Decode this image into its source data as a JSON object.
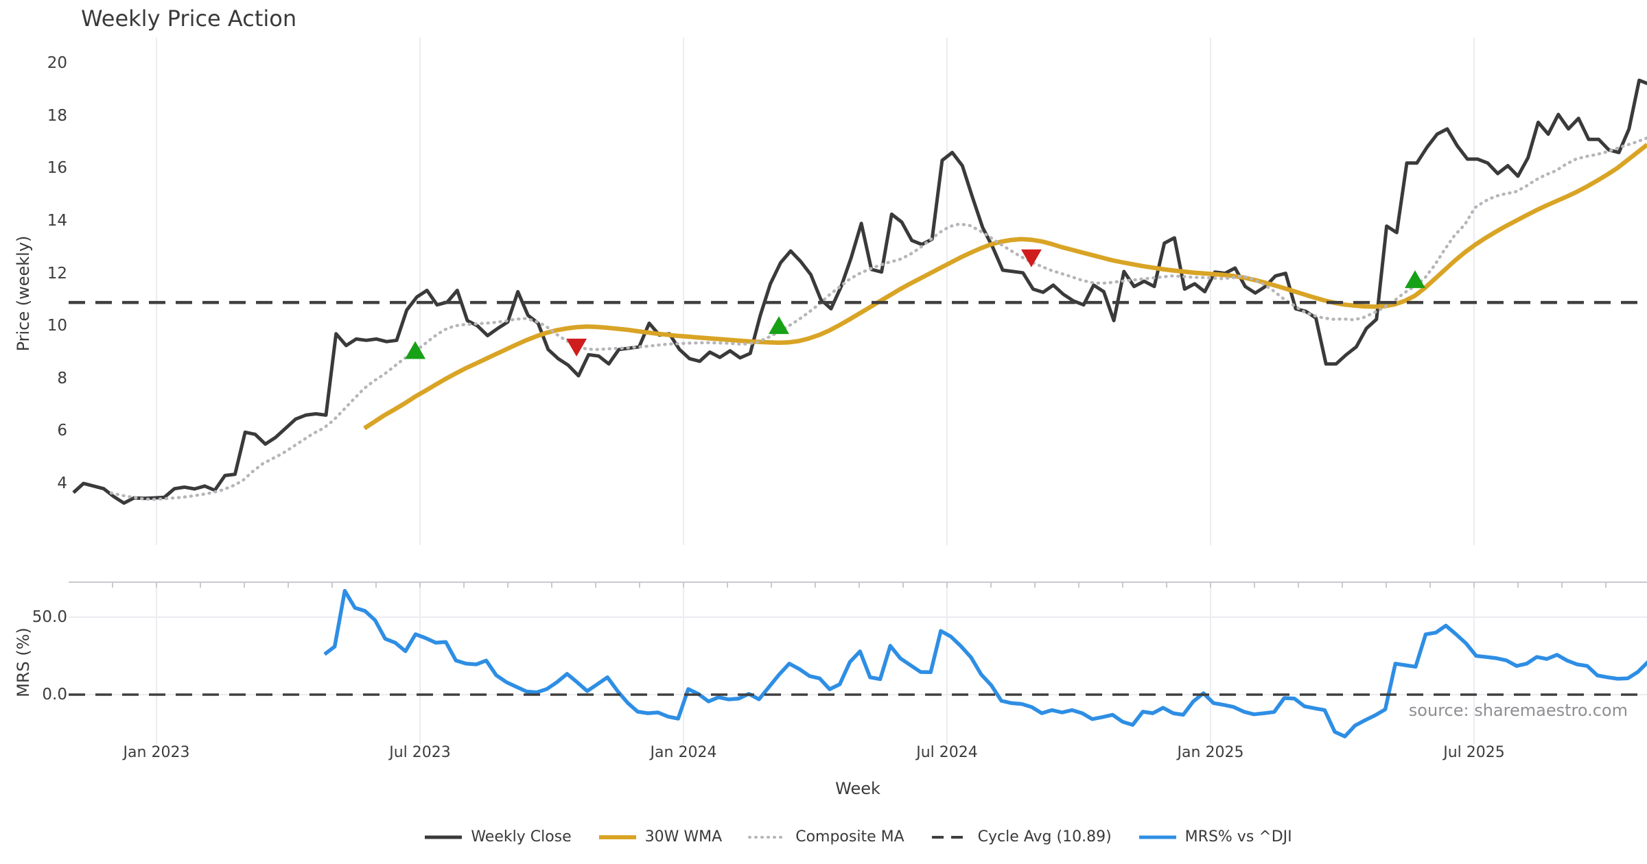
{
  "title": "Weekly Price Action",
  "source_note": "source: sharemaestro.com",
  "colors": {
    "close": "#3a3a3a",
    "wma": "#d9a425",
    "composite": "#b6b6ba",
    "cycle": "#3f3f3f",
    "mrs": "#2e8ee4",
    "buy": "#17a117",
    "sell": "#cf1d1d",
    "grid": "#ececf1",
    "spine": "#c9c9cf",
    "tick_text": "#3c3c3c",
    "source_text": "#8e8e93"
  },
  "price_axis": {
    "label": "Price (weekly)",
    "ticks": [
      {
        "label": "4",
        "value": 4
      },
      {
        "label": "6",
        "value": 6
      },
      {
        "label": "8",
        "value": 8
      },
      {
        "label": "10",
        "value": 10
      },
      {
        "label": "12",
        "value": 12
      },
      {
        "label": "14",
        "value": 14
      },
      {
        "label": "16",
        "value": 16
      },
      {
        "label": "18",
        "value": 18
      },
      {
        "label": "20",
        "value": 20
      }
    ],
    "range": [
      1.65,
      20.97
    ]
  },
  "mrs_axis": {
    "label": "MRS (%)",
    "ticks": [
      {
        "label": "0.0",
        "value": 0
      },
      {
        "label": "50.0",
        "value": 50
      }
    ],
    "range": [
      -31.9,
      72.6
    ]
  },
  "x_axis": {
    "label": "Week",
    "ticks": [
      {
        "label": "Jan 2023",
        "year": 2023.0
      },
      {
        "label": "Jul 2023",
        "year": 2023.5
      },
      {
        "label": "Jan 2024",
        "year": 2024.0
      },
      {
        "label": "Jul 2024",
        "year": 2024.5
      },
      {
        "label": "Jan 2025",
        "year": 2025.0
      },
      {
        "label": "Jul 2025",
        "year": 2025.5
      }
    ],
    "range": [
      2022.833,
      2025.828
    ]
  },
  "legend": [
    {
      "label": "Weekly Close",
      "swatch": "solid",
      "color_key": "close",
      "weight": 5
    },
    {
      "label": "30W WMA",
      "swatch": "solid",
      "color_key": "wma",
      "weight": 6
    },
    {
      "label": "Composite MA",
      "swatch": "dotted",
      "color_key": "composite",
      "weight": 4
    },
    {
      "label": "Cycle Avg (10.89)",
      "swatch": "dashed",
      "color_key": "cycle",
      "weight": 4
    },
    {
      "label": "MRS% vs ^DJI",
      "swatch": "solid",
      "color_key": "mrs",
      "weight": 5
    }
  ],
  "chart_data": [
    {
      "type": "line",
      "panel": "price",
      "name": "Weekly Close",
      "color_key": "close",
      "dash": "solid",
      "width": 5,
      "start_year": 2022.8424,
      "step_years": 0.0191667,
      "values": [
        3.65,
        4.0,
        3.9,
        3.8,
        3.5,
        3.25,
        3.45,
        3.43,
        3.45,
        3.47,
        3.8,
        3.86,
        3.79,
        3.9,
        3.74,
        4.3,
        4.35,
        5.95,
        5.87,
        5.5,
        5.75,
        6.1,
        6.45,
        6.6,
        6.65,
        6.6,
        9.7,
        9.25,
        9.5,
        9.45,
        9.5,
        9.4,
        9.45,
        10.6,
        11.1,
        11.35,
        10.8,
        10.9,
        11.35,
        10.2,
        10.0,
        9.63,
        9.9,
        10.15,
        11.3,
        10.4,
        10.1,
        9.1,
        8.75,
        8.5,
        8.1,
        8.9,
        8.85,
        8.55,
        9.1,
        9.15,
        9.2,
        10.1,
        9.65,
        9.7,
        9.1,
        8.75,
        8.65,
        9.0,
        8.8,
        9.05,
        8.78,
        8.95,
        10.4,
        11.6,
        12.4,
        12.85,
        12.45,
        11.95,
        11.0,
        10.65,
        11.5,
        12.6,
        13.9,
        12.15,
        12.05,
        14.25,
        13.95,
        13.25,
        13.1,
        13.3,
        16.3,
        16.6,
        16.1,
        14.9,
        13.75,
        13.0,
        12.12,
        12.07,
        12.02,
        11.4,
        11.28,
        11.55,
        11.2,
        10.95,
        10.8,
        11.55,
        11.3,
        10.2,
        12.07,
        11.5,
        11.7,
        11.5,
        13.15,
        13.35,
        11.4,
        11.6,
        11.3,
        12.05,
        12.0,
        12.2,
        11.5,
        11.25,
        11.5,
        11.9,
        12.0,
        10.65,
        10.55,
        10.3,
        8.55,
        8.55,
        8.9,
        9.2,
        9.9,
        10.25,
        13.8,
        13.55,
        16.2,
        16.2,
        16.8,
        17.3,
        17.5,
        16.85,
        16.35,
        16.35,
        16.2,
        15.8,
        16.1,
        15.7,
        16.4,
        17.75,
        17.3,
        18.05,
        17.5,
        17.9,
        17.1,
        17.1,
        16.7,
        16.6,
        17.5,
        19.35,
        19.2
      ]
    },
    {
      "type": "line",
      "panel": "price",
      "name": "30W WMA",
      "color_key": "wma",
      "dash": "solid",
      "width": 6.5,
      "start_year": 2023.3945,
      "step_years": 0.0191667,
      "values": [
        6.1,
        6.35,
        6.6,
        6.82,
        7.05,
        7.3,
        7.52,
        7.75,
        7.97,
        8.18,
        8.38,
        8.56,
        8.74,
        8.92,
        9.1,
        9.28,
        9.45,
        9.6,
        9.73,
        9.83,
        9.9,
        9.95,
        9.97,
        9.96,
        9.93,
        9.89,
        9.85,
        9.8,
        9.75,
        9.7,
        9.66,
        9.62,
        9.59,
        9.56,
        9.53,
        9.5,
        9.47,
        9.44,
        9.41,
        9.39,
        9.37,
        9.36,
        9.37,
        9.42,
        9.52,
        9.65,
        9.82,
        10.02,
        10.24,
        10.47,
        10.7,
        10.93,
        11.16,
        11.39,
        11.6,
        11.8,
        12.0,
        12.2,
        12.4,
        12.6,
        12.78,
        12.95,
        13.1,
        13.2,
        13.27,
        13.3,
        13.28,
        13.22,
        13.12,
        13.0,
        12.9,
        12.8,
        12.7,
        12.6,
        12.5,
        12.42,
        12.35,
        12.28,
        12.22,
        12.16,
        12.11,
        12.07,
        12.03,
        12.0,
        11.97,
        11.94,
        11.9,
        11.84,
        11.76,
        11.66,
        11.55,
        11.44,
        11.32,
        11.2,
        11.08,
        10.97,
        10.88,
        10.81,
        10.77,
        10.74,
        10.73,
        10.75,
        10.82,
        10.95,
        11.15,
        11.45,
        11.8,
        12.15,
        12.5,
        12.82,
        13.1,
        13.35,
        13.58,
        13.8,
        14.0,
        14.2,
        14.4,
        14.58,
        14.75,
        14.92,
        15.1,
        15.3,
        15.52,
        15.75,
        16.0,
        16.3,
        16.6,
        16.9
      ]
    },
    {
      "type": "line",
      "panel": "price",
      "name": "Composite MA",
      "color_key": "composite",
      "dash": "dotted",
      "width": 4.5,
      "start_year": 2022.914,
      "step_years": 0.0191667,
      "values": [
        3.64,
        3.55,
        3.48,
        3.42,
        3.39,
        3.41,
        3.44,
        3.47,
        3.52,
        3.58,
        3.65,
        3.75,
        3.9,
        4.1,
        4.45,
        4.75,
        4.95,
        5.15,
        5.4,
        5.65,
        5.9,
        6.1,
        6.4,
        6.8,
        7.2,
        7.6,
        7.9,
        8.15,
        8.45,
        8.75,
        9.0,
        9.3,
        9.6,
        9.85,
        10.0,
        10.05,
        10.07,
        10.1,
        10.13,
        10.18,
        10.25,
        10.28,
        10.18,
        10.0,
        9.7,
        9.45,
        9.27,
        9.12,
        9.1,
        9.12,
        9.14,
        9.16,
        9.19,
        9.22,
        9.26,
        9.3,
        9.32,
        9.34,
        9.35,
        9.36,
        9.35,
        9.34,
        9.31,
        9.31,
        9.38,
        9.55,
        9.75,
        9.98,
        10.22,
        10.5,
        10.8,
        11.15,
        11.45,
        11.75,
        11.98,
        12.15,
        12.3,
        12.42,
        12.52,
        12.7,
        12.95,
        13.25,
        13.55,
        13.78,
        13.88,
        13.82,
        13.62,
        13.38,
        13.12,
        12.88,
        12.65,
        12.45,
        12.28,
        12.12,
        12.0,
        11.88,
        11.75,
        11.65,
        11.62,
        11.65,
        11.7,
        11.74,
        11.78,
        11.82,
        11.86,
        11.9,
        11.88,
        11.85,
        11.84,
        11.82,
        11.8,
        11.83,
        11.9,
        11.78,
        11.6,
        11.35,
        11.05,
        10.8,
        10.55,
        10.4,
        10.3,
        10.25,
        10.26,
        10.23,
        10.32,
        10.5,
        10.7,
        10.95,
        11.25,
        11.5,
        11.8,
        12.3,
        12.9,
        13.45,
        13.85,
        14.5,
        14.75,
        14.93,
        15.03,
        15.1,
        15.3,
        15.55,
        15.75,
        15.9,
        16.15,
        16.35,
        16.45,
        16.52,
        16.62,
        16.75,
        16.88,
        17.0,
        17.15
      ]
    },
    {
      "type": "hline",
      "panel": "price",
      "name": "Cycle Avg (10.89)",
      "color_key": "cycle",
      "dash": "dashed",
      "width": 4.5,
      "value": 10.89
    },
    {
      "type": "scatter",
      "panel": "price",
      "name": "Buy signals",
      "marker": "triangle-up",
      "color_key": "buy",
      "points": [
        [
          2023.491,
          9.0
        ],
        [
          2024.181,
          9.95
        ],
        [
          2025.388,
          11.7
        ]
      ]
    },
    {
      "type": "scatter",
      "panel": "price",
      "name": "Sell signals",
      "marker": "triangle-down",
      "color_key": "sell",
      "points": [
        [
          2023.797,
          9.25
        ],
        [
          2024.66,
          12.65
        ]
      ]
    },
    {
      "type": "line",
      "panel": "mrs",
      "name": "MRS% vs ^DJI",
      "color_key": "mrs",
      "dash": "solid",
      "width": 5.5,
      "start_year": 2023.319,
      "step_years": 0.0191667,
      "values": [
        26,
        31,
        67,
        56,
        54,
        48,
        36,
        33.5,
        28,
        39,
        36.5,
        33.5,
        34,
        22,
        20,
        19.5,
        22,
        12.5,
        8,
        5,
        2,
        1.5,
        3.6,
        8,
        13.4,
        8,
        2.3,
        6.7,
        11.2,
        2.3,
        -5.3,
        -11,
        -12,
        -11.5,
        -14.2,
        -15.5,
        3.6,
        0.5,
        -4.4,
        -1.7,
        -3.1,
        -2.5,
        0.5,
        -3,
        5,
        13,
        20,
        16.5,
        12,
        10.5,
        3.5,
        6.7,
        21,
        27.9,
        11.2,
        10,
        31.5,
        23.4,
        19,
        14.6,
        14.5,
        41.1,
        37.5,
        31.2,
        24,
        13,
        6,
        -4,
        -5.5,
        -6,
        -8,
        -12,
        -10,
        -11.5,
        -10,
        -12,
        -15.8,
        -14.5,
        -13,
        -17.5,
        -19.5,
        -11,
        -12,
        -8.5,
        -12,
        -13,
        -4.4,
        0.9,
        -5.5,
        -6.6,
        -8,
        -11,
        -12.7,
        -12,
        -11.2,
        -2.2,
        -2.5,
        -7.5,
        -8.8,
        -10,
        -24,
        -27,
        -20,
        -16.5,
        -13.3,
        -9.5,
        20,
        19,
        18,
        38.9,
        40,
        44.5,
        39,
        33,
        25,
        24.3,
        23.5,
        22.1,
        18.5,
        20,
        24.3,
        23,
        25.7,
        22,
        19.5,
        18.5,
        12.4,
        11.2,
        10.2,
        10.5,
        14.6,
        21,
        19,
        19.5
      ]
    },
    {
      "type": "hline",
      "panel": "mrs",
      "name": "MRS zero line",
      "color_key": "cycle",
      "dash": "dashed",
      "width": 3.5,
      "value": 0
    }
  ]
}
